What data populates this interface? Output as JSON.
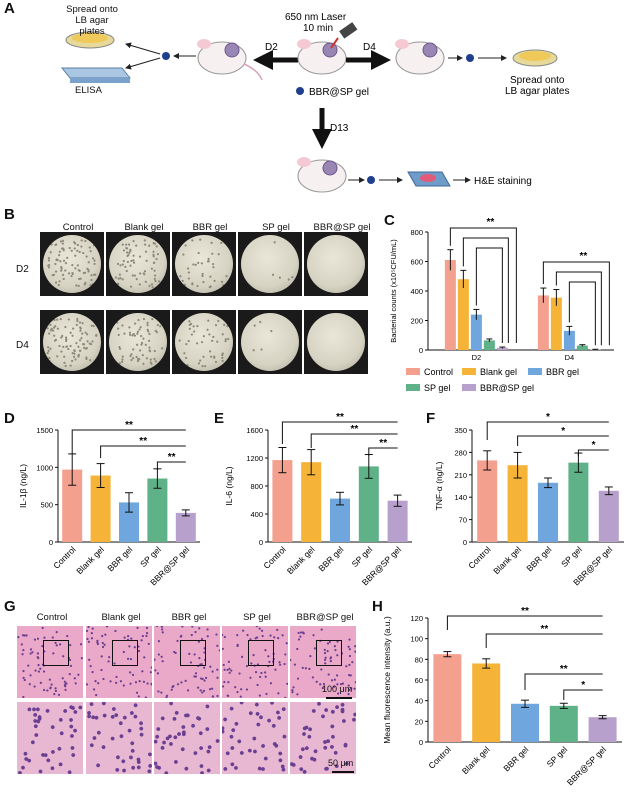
{
  "panel_labels": {
    "A": "A",
    "B": "B",
    "C": "C",
    "D": "D",
    "E": "E",
    "F": "F",
    "G": "G",
    "H": "H"
  },
  "schematic": {
    "spread_top_left": [
      "Spread onto",
      "LB agar plates"
    ],
    "elisa": "ELISA",
    "laser": [
      "650 nm Laser",
      "10 min"
    ],
    "d2": "D2",
    "d4": "D4",
    "d13": "D13",
    "legend_gel": "BBR@SP gel",
    "spread_right": [
      "Spread onto",
      "LB agar plates"
    ],
    "he": "H&E staining"
  },
  "groups": [
    "Control",
    "Blank gel",
    "BBR gel",
    "SP gel",
    "BBR@SP gel"
  ],
  "plates": {
    "rows": [
      "D2",
      "D4"
    ]
  },
  "colors": {
    "control": "#f4a08e",
    "blank": "#f5b437",
    "bbr": "#6fa6dd",
    "sp": "#5fb187",
    "bbrsp": "#b8a0cc"
  },
  "sig": {
    "double": "**",
    "single": "*"
  },
  "chart_data": [
    {
      "id": "C",
      "type": "bar",
      "categories": [
        "D2",
        "D4"
      ],
      "series": [
        {
          "name": "Control",
          "values": [
            610,
            370
          ],
          "err": [
            70,
            50
          ]
        },
        {
          "name": "Blank gel",
          "values": [
            480,
            355
          ],
          "err": [
            60,
            55
          ]
        },
        {
          "name": "BBR gel",
          "values": [
            240,
            130
          ],
          "err": [
            35,
            30
          ]
        },
        {
          "name": "SP gel",
          "values": [
            65,
            30
          ],
          "err": [
            10,
            6
          ]
        },
        {
          "name": "BBR@SP gel",
          "values": [
            15,
            3
          ],
          "err": [
            5,
            2
          ]
        }
      ],
      "ylabel": "Bacterial counts (x10⁵CFU/mL)",
      "ylim": [
        0,
        800
      ],
      "yticks": [
        0,
        200,
        400,
        600,
        800
      ]
    },
    {
      "id": "D",
      "type": "bar",
      "categories": [
        "Control",
        "Blank gel",
        "BBR gel",
        "SP gel",
        "BBR@SP gel"
      ],
      "values": [
        970,
        890,
        530,
        850,
        390
      ],
      "err": [
        210,
        160,
        130,
        130,
        40
      ],
      "ylabel": "IL-1β (ng/L)",
      "ylim": [
        0,
        1500
      ],
      "yticks": [
        0,
        500,
        1000,
        1500
      ]
    },
    {
      "id": "E",
      "type": "bar",
      "categories": [
        "Control",
        "Blank gel",
        "BBR gel",
        "SP gel",
        "BBR@SP gel"
      ],
      "values": [
        1170,
        1140,
        620,
        1080,
        590
      ],
      "err": [
        180,
        180,
        90,
        170,
        80
      ],
      "ylabel": "IL-6 (ng/L)",
      "ylim": [
        0,
        1600
      ],
      "yticks": [
        0,
        400,
        800,
        1200,
        1600
      ]
    },
    {
      "id": "F",
      "type": "bar",
      "categories": [
        "Control",
        "Blank gel",
        "BBR gel",
        "SP gel",
        "BBR@SP gel"
      ],
      "values": [
        255,
        240,
        185,
        248,
        160
      ],
      "err": [
        30,
        40,
        15,
        30,
        12
      ],
      "ylabel": "TNF-α (ng/L)",
      "ylim": [
        0,
        350
      ],
      "yticks": [
        0,
        70,
        140,
        210,
        280,
        350
      ]
    },
    {
      "id": "H",
      "type": "bar",
      "categories": [
        "Control",
        "Blank gel",
        "BBR gel",
        "SP gel",
        "BBR@SP gel"
      ],
      "values": [
        85,
        76,
        37,
        35,
        24
      ],
      "err": [
        2.5,
        4.5,
        3.5,
        2.5,
        1.5
      ],
      "ylabel": "Mean fluorescence intensity (a.u.)",
      "ylim": [
        0,
        120
      ],
      "yticks": [
        0,
        20,
        40,
        60,
        80,
        100,
        120
      ]
    }
  ],
  "scalebars": {
    "top": "100 μm",
    "bottom": "50 μm"
  }
}
